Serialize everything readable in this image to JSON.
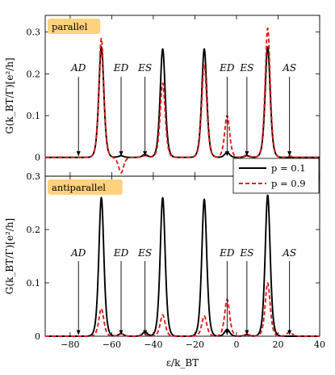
{
  "chart_data": {
    "type": "line",
    "xlabel": "ε/k_BT",
    "ylabel": "G(k_BT/Γ)[e²/h]",
    "xlim": [
      -92,
      40
    ],
    "x_ticks": [
      -80,
      -60,
      -40,
      -20,
      0,
      20,
      40
    ],
    "x_tick_labels": [
      "−80",
      "−60",
      "−40",
      "−20",
      "0",
      "20",
      "40"
    ],
    "legend": {
      "placement": "right, between panels",
      "entries": [
        {
          "label": "p = 0.1",
          "color": "#000000",
          "style": "solid"
        },
        {
          "label": "p = 0.9",
          "color": "#e41a1c",
          "style": "dashed"
        }
      ]
    },
    "panels": [
      {
        "title": "parallel",
        "ylim": [
          -0.045,
          0.34
        ],
        "y_ticks": [
          0,
          0.1,
          0.2,
          0.3
        ],
        "y_tick_labels": [
          "0",
          "0.1",
          "0.2",
          "0.3"
        ],
        "annotations": [
          {
            "label": "AD",
            "x": -76
          },
          {
            "label": "ED",
            "x": -55.5
          },
          {
            "label": "ES",
            "x": -44
          },
          {
            "label": "ED",
            "x": -4.5
          },
          {
            "label": "ES",
            "x": 5
          },
          {
            "label": "AS",
            "x": 25.5
          }
        ],
        "series": [
          {
            "name": "p = 0.1",
            "peaks": [
              {
                "x": -65,
                "height": 0.265
              },
              {
                "x": -35.5,
                "height": 0.26
              },
              {
                "x": -15.5,
                "height": 0.26
              },
              {
                "x": 15,
                "height": 0.265
              },
              {
                "x": -55.5,
                "height": 0.004
              },
              {
                "x": -44,
                "height": 0.007
              },
              {
                "x": -4.5,
                "height": 0.012
              },
              {
                "x": 5,
                "height": 0.004
              }
            ]
          },
          {
            "name": "p = 0.9",
            "peaks": [
              {
                "x": -65,
                "height": 0.285
              },
              {
                "x": -35.5,
                "height": 0.178
              },
              {
                "x": -15.5,
                "height": 0.222
              },
              {
                "x": 15,
                "height": 0.31
              },
              {
                "x": -55.5,
                "height": -0.037
              },
              {
                "x": -44,
                "height": 0.004
              },
              {
                "x": -4.5,
                "height": 0.1
              },
              {
                "x": 5,
                "height": 0.006
              },
              {
                "x": 25.5,
                "height": 0.003
              }
            ]
          }
        ]
      },
      {
        "title": "antiparallel",
        "ylim": [
          0,
          0.3
        ],
        "y_ticks": [
          0,
          0.1,
          0.2,
          0.3
        ],
        "y_tick_labels": [
          "0",
          "0.1",
          "0.2",
          "0.3"
        ],
        "annotations": [
          {
            "label": "AD",
            "x": -76
          },
          {
            "label": "ED",
            "x": -55.5
          },
          {
            "label": "ES",
            "x": -44
          },
          {
            "label": "ED",
            "x": -4.5
          },
          {
            "label": "ES",
            "x": 5
          },
          {
            "label": "AS",
            "x": 25.5
          }
        ],
        "series": [
          {
            "name": "p = 0.1",
            "peaks": [
              {
                "x": -65,
                "height": 0.26
              },
              {
                "x": -35.5,
                "height": 0.26
              },
              {
                "x": -15.5,
                "height": 0.257
              },
              {
                "x": 15,
                "height": 0.265
              },
              {
                "x": -55.5,
                "height": 0.005
              },
              {
                "x": -44,
                "height": 0.008
              },
              {
                "x": -4.5,
                "height": 0.013
              },
              {
                "x": 5,
                "height": 0.003
              }
            ]
          },
          {
            "name": "p = 0.9",
            "peaks": [
              {
                "x": -65,
                "height": 0.052
              },
              {
                "x": -35.5,
                "height": 0.04
              },
              {
                "x": -15.5,
                "height": 0.038
              },
              {
                "x": 15,
                "height": 0.1
              },
              {
                "x": -55.5,
                "height": 0.005
              },
              {
                "x": -44,
                "height": 0.003
              },
              {
                "x": -4.5,
                "height": 0.069
              },
              {
                "x": 5,
                "height": 0.004
              },
              {
                "x": 25.5,
                "height": 0.008
              }
            ]
          }
        ]
      }
    ]
  }
}
